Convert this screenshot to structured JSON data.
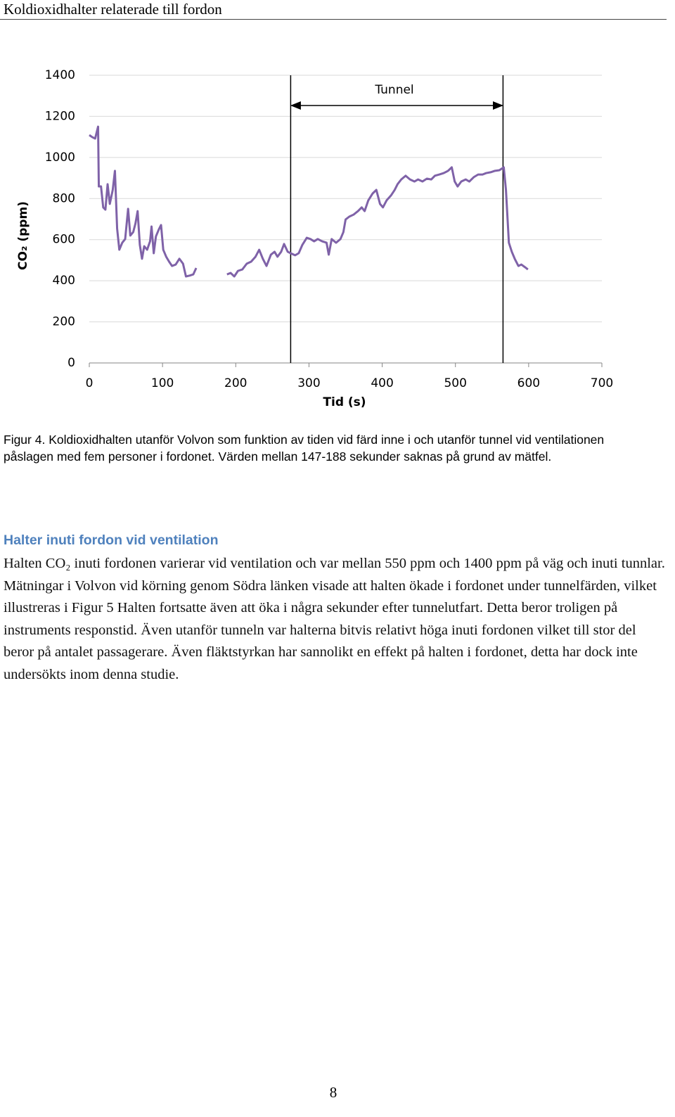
{
  "header": {
    "title": "Koldioxidhalter relaterade till fordon"
  },
  "chart_data": {
    "type": "line",
    "x_label": "Tid (s)",
    "y_label": "CO₂ (ppm)",
    "xlim": [
      0,
      700
    ],
    "ylim": [
      0,
      1400
    ],
    "xticks": [
      0,
      100,
      200,
      300,
      400,
      500,
      600,
      700
    ],
    "yticks": [
      0,
      200,
      400,
      600,
      800,
      1000,
      1200,
      1400
    ],
    "grid": true,
    "annotation": {
      "label": "Tunnel",
      "x_start": 275,
      "x_end": 565
    },
    "series": [
      {
        "color": "#7f62a8",
        "x": [
          0,
          4,
          8,
          12,
          13,
          16,
          19,
          22,
          25,
          28,
          32,
          35,
          38,
          41,
          45,
          49,
          53,
          56,
          60,
          63,
          66,
          69,
          72,
          75,
          79,
          83,
          85,
          88,
          91,
          95,
          98,
          101,
          105,
          109,
          113,
          118,
          123,
          128,
          132,
          137,
          142,
          146,
          167,
          188,
          193,
          198,
          203,
          209,
          215,
          221,
          227,
          232,
          237,
          242,
          248,
          253,
          257,
          262,
          266,
          271,
          275,
          281,
          286,
          291,
          297,
          302,
          307,
          312,
          318,
          324,
          327,
          331,
          337,
          343,
          347,
          350,
          355,
          361,
          367,
          372,
          376,
          381,
          387,
          392,
          397,
          401,
          406,
          412,
          417,
          421,
          426,
          432,
          438,
          444,
          449,
          455,
          461,
          467,
          472,
          478,
          484,
          490,
          495,
          499,
          503,
          508,
          514,
          519,
          525,
          531,
          537,
          542,
          548,
          554,
          560,
          566,
          569,
          573,
          577,
          581,
          586,
          590,
          595,
          599
        ],
        "values": [
          1109,
          1099,
          1092,
          1150,
          859,
          859,
          757,
          746,
          870,
          774,
          842,
          935,
          654,
          551,
          585,
          603,
          750,
          620,
          637,
          678,
          739,
          575,
          507,
          568,
          551,
          592,
          664,
          534,
          616,
          650,
          671,
          551,
          517,
          493,
          472,
          479,
          507,
          483,
          421,
          425,
          431,
          462,
          null,
          431,
          438,
          421,
          448,
          455,
          483,
          493,
          517,
          551,
          507,
          472,
          527,
          541,
          517,
          541,
          579,
          541,
          534,
          524,
          534,
          575,
          609,
          603,
          592,
          603,
          592,
          585,
          527,
          603,
          585,
          603,
          637,
          698,
          712,
          722,
          739,
          757,
          739,
          791,
          825,
          842,
          774,
          757,
          791,
          815,
          842,
          870,
          893,
          911,
          893,
          883,
          893,
          883,
          897,
          893,
          911,
          917,
          924,
          935,
          952,
          883,
          859,
          883,
          893,
          883,
          904,
          917,
          917,
          924,
          928,
          935,
          938,
          952,
          842,
          585,
          541,
          507,
          472,
          479,
          466,
          455
        ]
      }
    ]
  },
  "caption": "Figur 4. Koldioxidhalten utanför Volvon som funktion av tiden vid färd inne i och utanför tunnel vid ventilationen påslagen med fem personer i fordonet. Värden mellan 147-188 sekunder saknas på grund av mätfel.",
  "section": {
    "heading": "Halter inuti fordon vid ventilation",
    "paragraph": "Halten CO₂ inuti fordonen varierar vid ventilation och var mellan 550 ppm och 1400 ppm på väg och inuti tunnlar. Mätningar i Volvon vid körning genom Södra länken visade att halten ökade i fordonet under tunnelfärden, vilket illustreras i Figur 5 Halten fortsatte även att öka i några sekunder efter tunnelutfart. Detta beror troligen på instruments responstid. Även utanför tunneln var halterna bitvis relativt höga inuti fordonen vilket till stor del beror på antalet passagerare. Även fläktstyrkan har sannolikt en effekt på halten i fordonet, detta har dock inte undersökts inom denna studie."
  },
  "footer": {
    "page_number": "8"
  }
}
